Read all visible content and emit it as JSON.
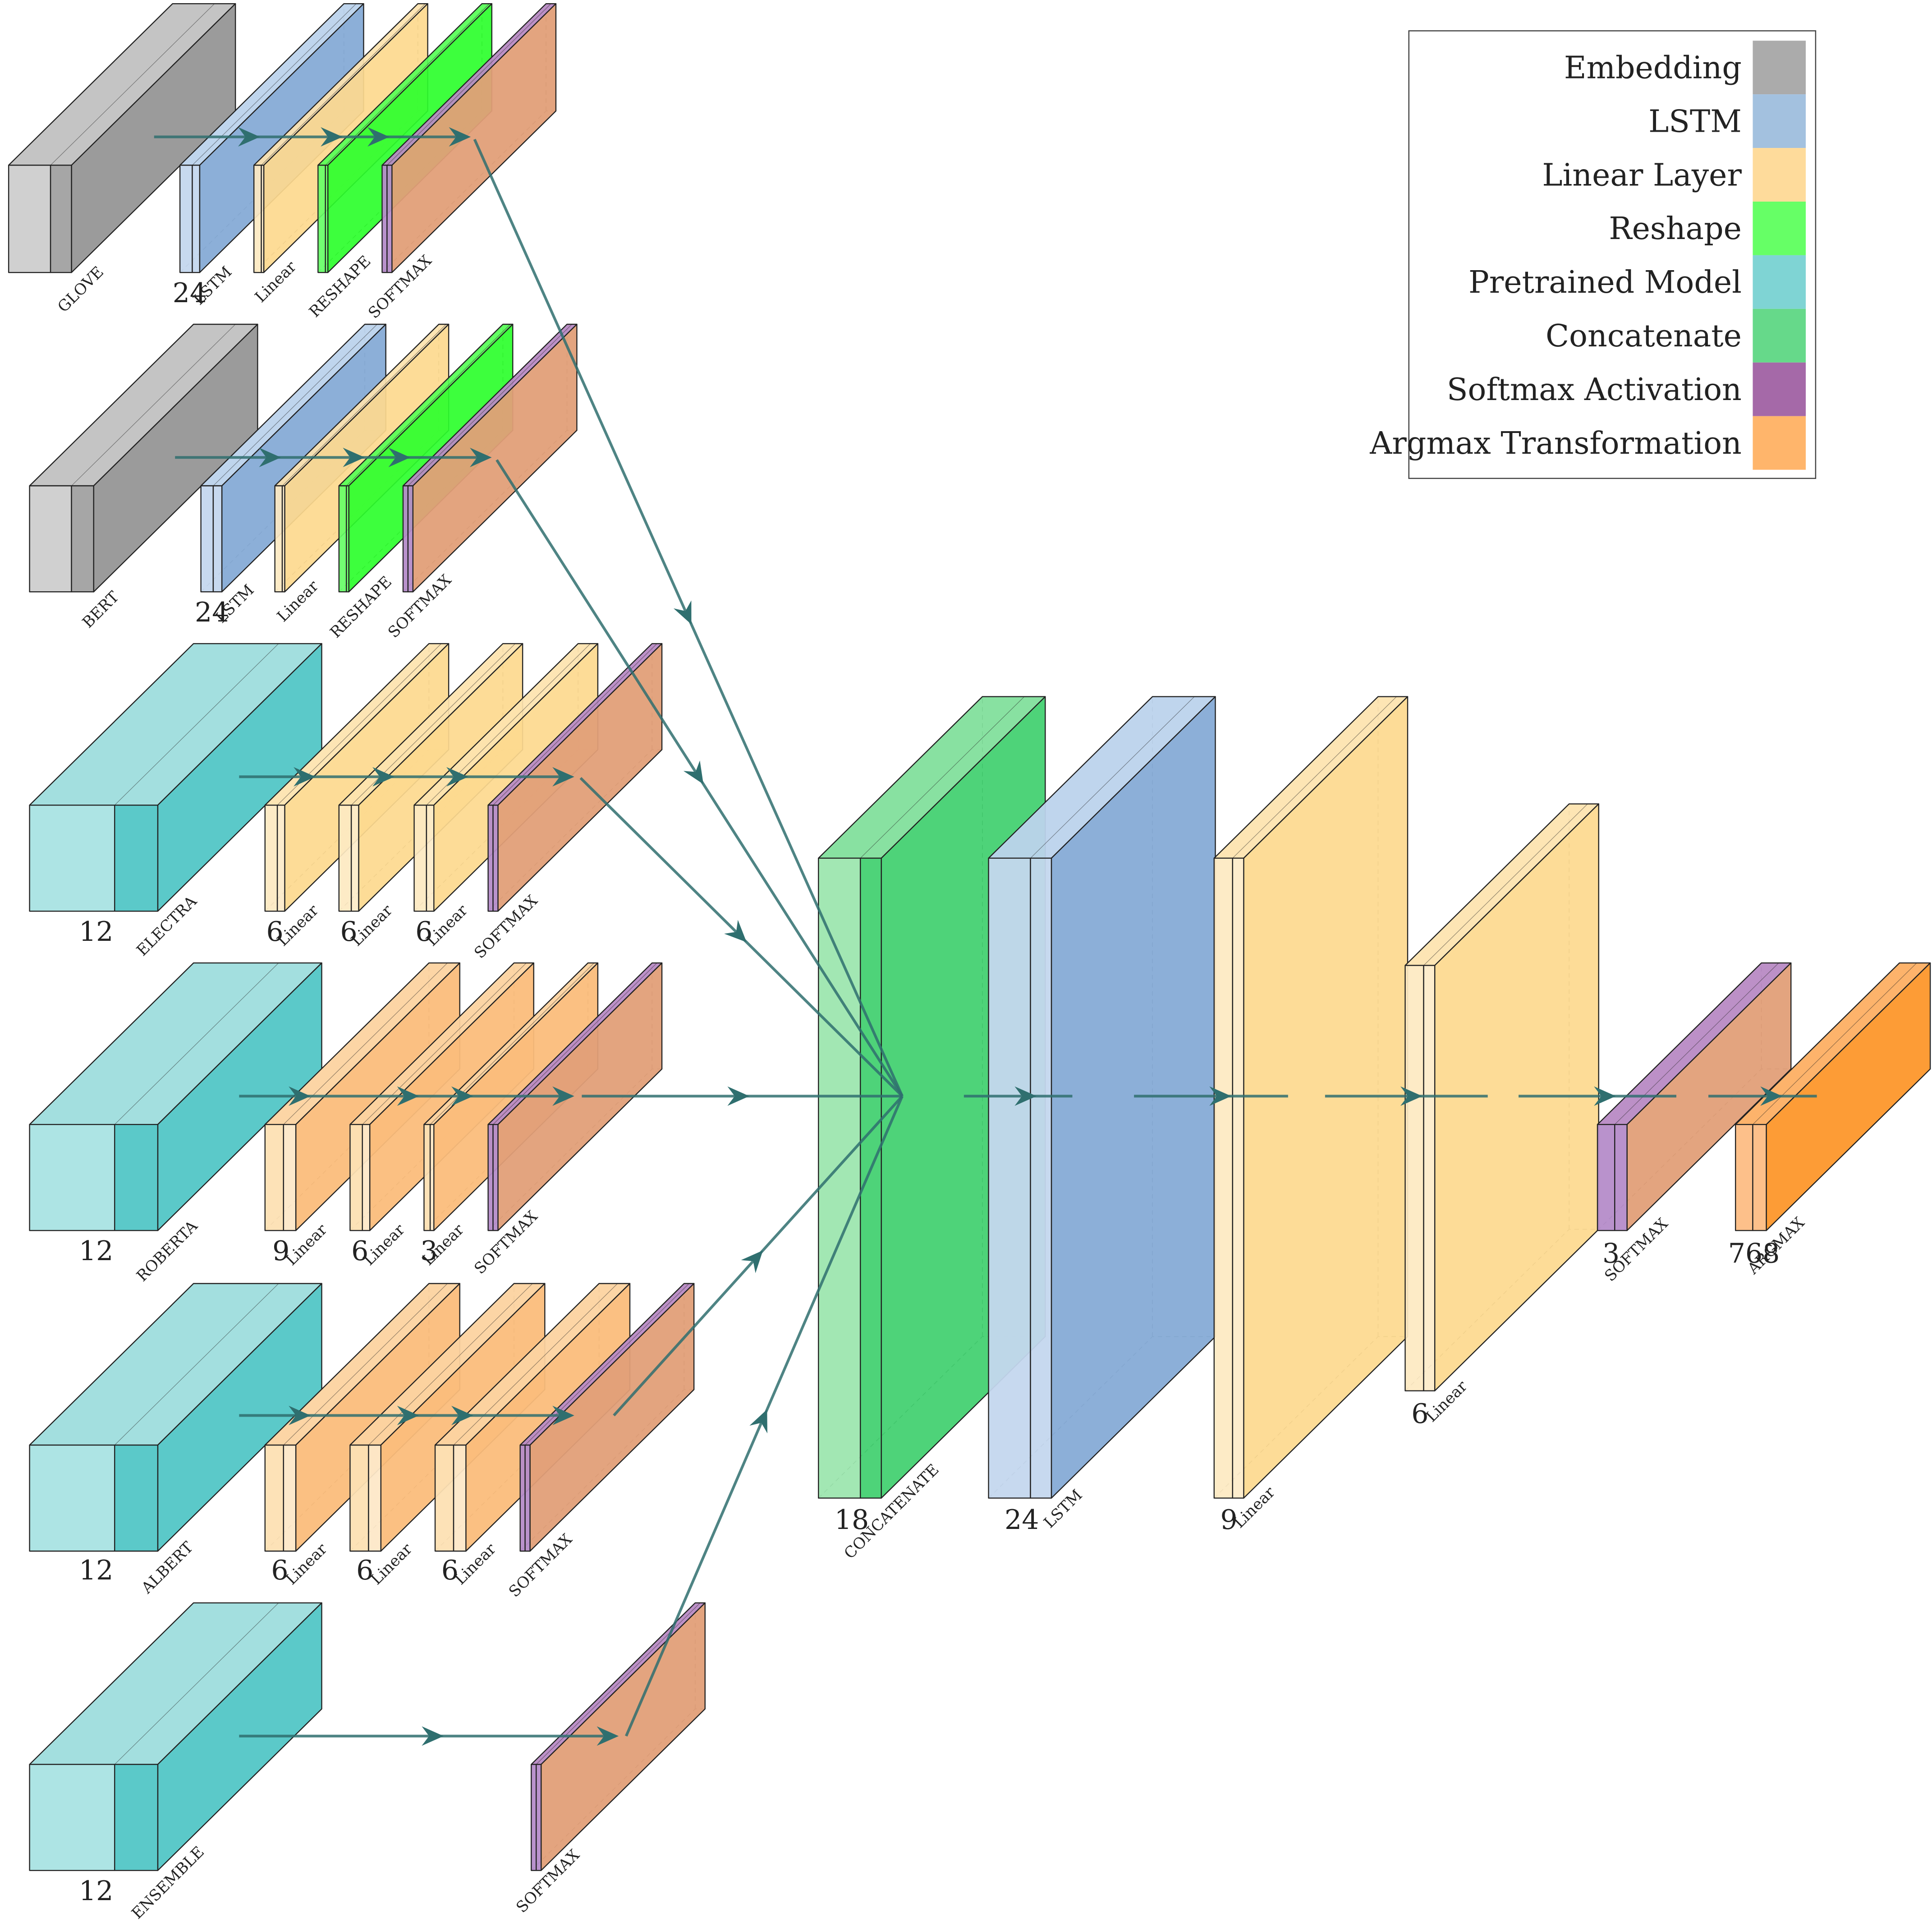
{
  "legend": {
    "items": [
      {
        "label": "Embedding",
        "color": "#ababab"
      },
      {
        "label": "LSTM",
        "color": "#a3c1df"
      },
      {
        "label": "Linear Layer",
        "color": "#fedb9b"
      },
      {
        "label": "Reshape",
        "color": "#66ff66"
      },
      {
        "label": "Pretrained Model",
        "color": "#7fd4d4"
      },
      {
        "label": "Concatenate",
        "color": "#66d98a"
      },
      {
        "label": "Softmax Activation",
        "color": "#a569a8"
      },
      {
        "label": "Argmax Transformation",
        "color": "#ffb56b"
      }
    ]
  },
  "branches": [
    {
      "name": "GLOVE",
      "layers": [
        {
          "type": "embedding",
          "label": "GLOVE",
          "size": ""
        },
        {
          "type": "lstm",
          "label": "LSTM",
          "size": "24"
        },
        {
          "type": "linear",
          "label": "Linear",
          "size": ""
        },
        {
          "type": "reshape",
          "label": "RESHAPE",
          "size": ""
        },
        {
          "type": "softmax",
          "label": "SOFTMAX",
          "size": ""
        }
      ]
    },
    {
      "name": "BERT",
      "layers": [
        {
          "type": "embedding",
          "label": "BERT",
          "size": ""
        },
        {
          "type": "lstm",
          "label": "LSTM",
          "size": "24"
        },
        {
          "type": "linear",
          "label": "Linear",
          "size": ""
        },
        {
          "type": "reshape",
          "label": "RESHAPE",
          "size": ""
        },
        {
          "type": "softmax",
          "label": "SOFTMAX",
          "size": ""
        }
      ]
    },
    {
      "name": "ELECTRA",
      "layers": [
        {
          "type": "pretrained",
          "label": "ELECTRA",
          "size": "12"
        },
        {
          "type": "linear",
          "label": "Linear",
          "size": "6"
        },
        {
          "type": "linear",
          "label": "Linear",
          "size": "6"
        },
        {
          "type": "linear",
          "label": "Linear",
          "size": "6"
        },
        {
          "type": "softmax",
          "label": "SOFTMAX",
          "size": ""
        }
      ]
    },
    {
      "name": "ROBERTA",
      "layers": [
        {
          "type": "pretrained",
          "label": "ROBERTA",
          "size": "12"
        },
        {
          "type": "linear",
          "label": "Linear",
          "size": "9"
        },
        {
          "type": "linear",
          "label": "Linear",
          "size": "6"
        },
        {
          "type": "linear",
          "label": "Linear",
          "size": "3"
        },
        {
          "type": "softmax",
          "label": "SOFTMAX",
          "size": ""
        }
      ]
    },
    {
      "name": "ALBERT",
      "layers": [
        {
          "type": "pretrained",
          "label": "ALBERT",
          "size": "12"
        },
        {
          "type": "linear",
          "label": "Linear",
          "size": "6"
        },
        {
          "type": "linear",
          "label": "Linear",
          "size": "6"
        },
        {
          "type": "linear",
          "label": "Linear",
          "size": "6"
        },
        {
          "type": "softmax",
          "label": "SOFTMAX",
          "size": ""
        }
      ]
    },
    {
      "name": "ENSEMBLE",
      "layers": [
        {
          "type": "pretrained",
          "label": "ENSEMBLE",
          "size": "12"
        },
        {
          "type": "softmax",
          "label": "SOFTMAX",
          "size": ""
        }
      ]
    }
  ],
  "main": {
    "layers": [
      {
        "type": "concatenate",
        "label": "CONCATENATE",
        "size": "18"
      },
      {
        "type": "lstm",
        "label": "LSTM",
        "size": "24"
      },
      {
        "type": "linear",
        "label": "Linear",
        "size": "9"
      },
      {
        "type": "linear",
        "label": "Linear",
        "size": "6"
      },
      {
        "type": "softmax",
        "label": "SOFTMAX",
        "size": "3"
      },
      {
        "type": "argmax",
        "label": "ARGMAX",
        "size": "768"
      }
    ]
  }
}
